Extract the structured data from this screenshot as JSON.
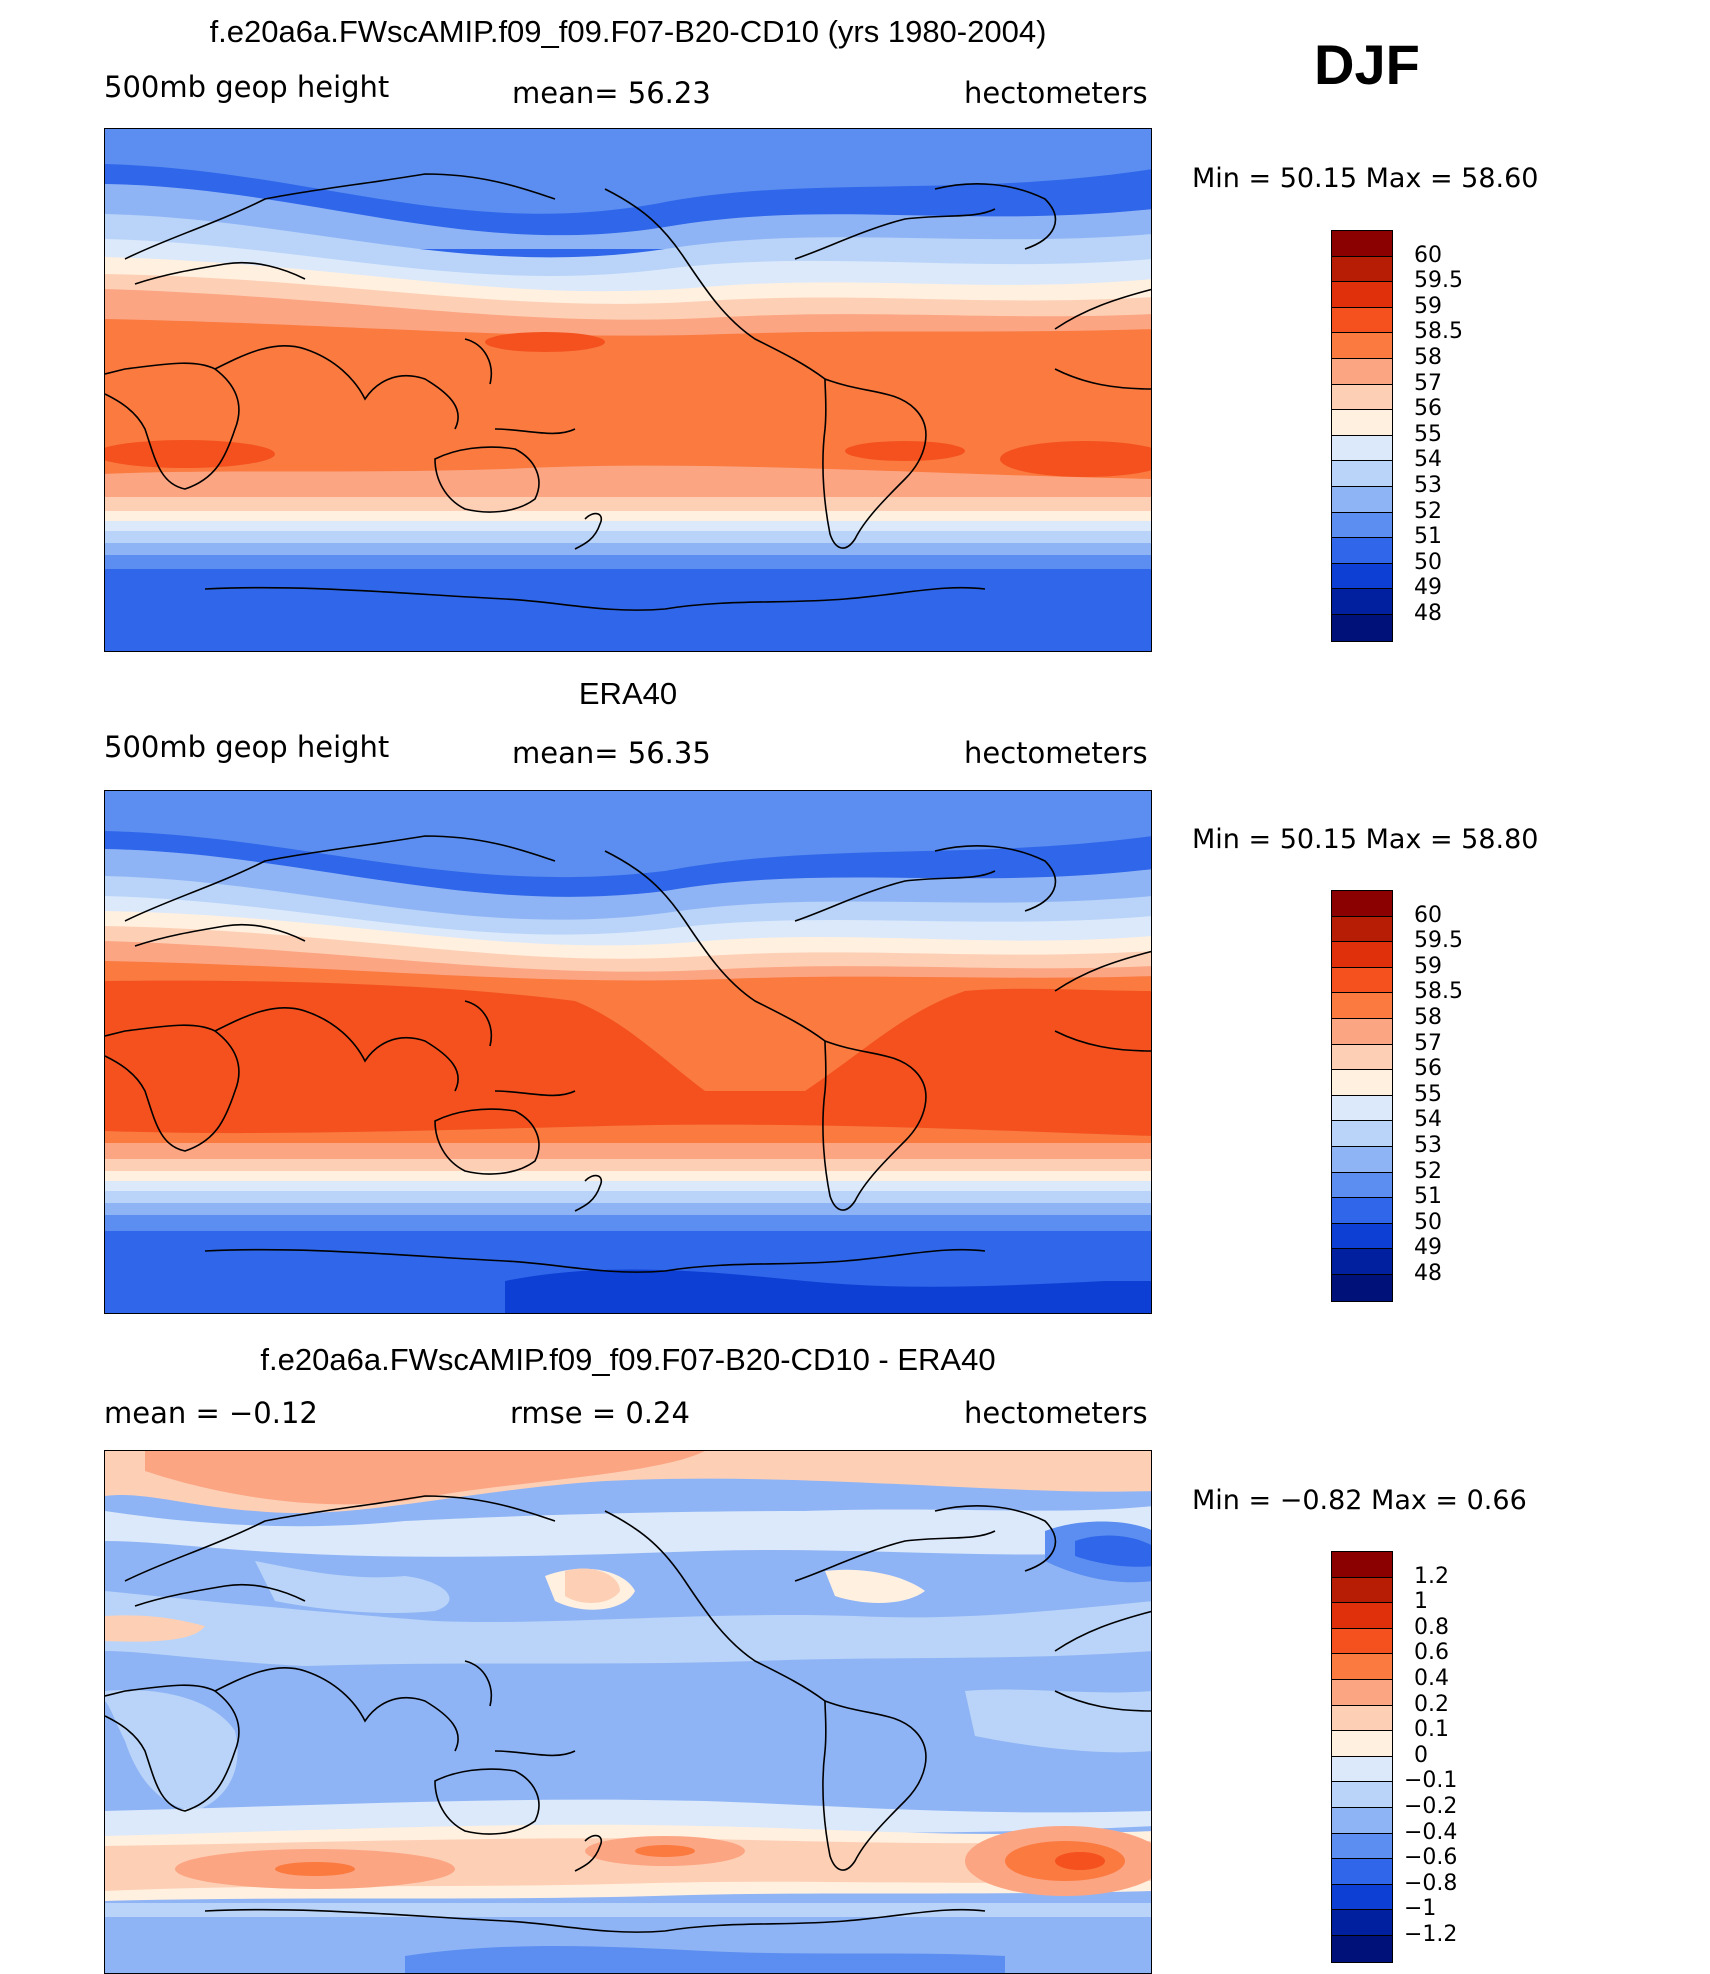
{
  "season": "DJF",
  "panels": [
    {
      "id": "model",
      "title": "f.e20a6a.FWscAMIP.f09_f09.F07-B20-CD10 (yrs 1980-2004)",
      "left_label": "500mb  geop  height",
      "mid_label": "mean=   56.23",
      "right_label": "hectometers",
      "minmax": "Min  =    50.15  Max  =    58.60",
      "colorbar_colors": [
        "#8b0000",
        "#b71c05",
        "#e0300b",
        "#f4511e",
        "#fa7a40",
        "#fca583",
        "#fdd0b6",
        "#fff0e0",
        "#dbe9fb",
        "#b9d4f8",
        "#8fb4f5",
        "#5b8ef0",
        "#2f66ea",
        "#0d3fd4",
        "#0020a0",
        "#00127a"
      ],
      "colorbar_labels": [
        "60",
        "59.5",
        "59",
        "58.5",
        "58",
        "57",
        "56",
        "55",
        "54",
        "53",
        "52",
        "51",
        "50",
        "49",
        "48"
      ]
    },
    {
      "id": "obs",
      "title": "ERA40",
      "left_label": "500mb  geop  height",
      "mid_label": "mean=   56.35",
      "right_label": "hectometers",
      "minmax": "Min  =    50.15  Max  =    58.80",
      "colorbar_colors": [
        "#8b0000",
        "#b71c05",
        "#e0300b",
        "#f4511e",
        "#fa7a40",
        "#fca583",
        "#fdd0b6",
        "#fff0e0",
        "#dbe9fb",
        "#b9d4f8",
        "#8fb4f5",
        "#5b8ef0",
        "#2f66ea",
        "#0d3fd4",
        "#0020a0",
        "#00127a"
      ],
      "colorbar_labels": [
        "60",
        "59.5",
        "59",
        "58.5",
        "58",
        "57",
        "56",
        "55",
        "54",
        "53",
        "52",
        "51",
        "50",
        "49",
        "48"
      ]
    },
    {
      "id": "diff",
      "title": "f.e20a6a.FWscAMIP.f09_f09.F07-B20-CD10 - ERA40",
      "left_label": "mean  =    −0.12",
      "mid_label": "rmse  =     0.24",
      "right_label": "hectometers",
      "minmax": "Min  =    −0.82  Max  =      0.66",
      "colorbar_colors": [
        "#8b0000",
        "#b71c05",
        "#e0300b",
        "#f4511e",
        "#fa7a40",
        "#fca583",
        "#fdd0b6",
        "#fff0e0",
        "#dbe9fb",
        "#b9d4f8",
        "#8fb4f5",
        "#5b8ef0",
        "#2f66ea",
        "#0d3fd4",
        "#0020a0",
        "#00127a"
      ],
      "colorbar_labels": [
        "1.2",
        "1",
        "0.8",
        "0.6",
        "0.4",
        "0.2",
        "0.1",
        "0",
        "−0.1",
        "−0.2",
        "−0.4",
        "−0.6",
        "−0.8",
        "−1",
        "−1.2"
      ]
    }
  ]
}
